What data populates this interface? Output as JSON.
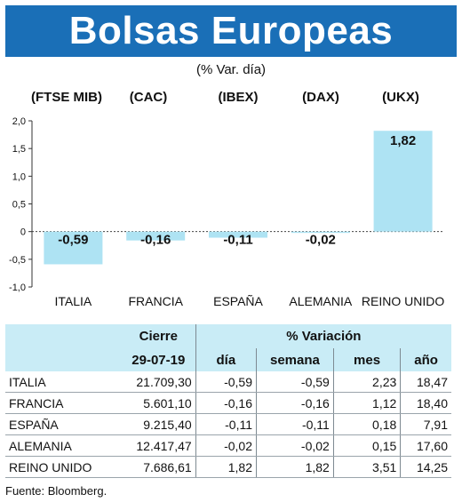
{
  "title": "Bolsas Europeas",
  "subtitle": "(% Var. día)",
  "chart_data": {
    "type": "bar",
    "categories": [
      "ITALIA",
      "FRANCIA",
      "ESPAÑA",
      "ALEMANIA",
      "REINO UNIDO"
    ],
    "index_labels": [
      "(FTSE MIB)",
      "(CAC)",
      "(IBEX)",
      "(DAX)",
      "(UKX)"
    ],
    "values": [
      -0.59,
      -0.16,
      -0.11,
      -0.02,
      1.82
    ],
    "value_labels": [
      "-0,59",
      "-0,16",
      "-0,11",
      "-0,02",
      "1,82"
    ],
    "yticks": [
      2.0,
      1.5,
      1.0,
      0.5,
      0,
      -0.5,
      -1.0
    ],
    "ytick_labels": [
      "2,0",
      "1,5",
      "1,0",
      "0,5",
      "0",
      "-0,5",
      "-1,0"
    ],
    "ylim": [
      -1.0,
      2.0
    ],
    "grid": false,
    "bar_color": "#aee3f3"
  },
  "table": {
    "group_headers": [
      "Cierre",
      "% Variación"
    ],
    "sub_headers": [
      "29-07-19",
      "día",
      "semana",
      "mes",
      "año"
    ],
    "rows": [
      {
        "name": "ITALIA",
        "cierre": "21.709,30",
        "dia": "-0,59",
        "semana": "-0,59",
        "mes": "2,23",
        "ano": "18,47"
      },
      {
        "name": "FRANCIA",
        "cierre": "5.601,10",
        "dia": "-0,16",
        "semana": "-0,16",
        "mes": "1,12",
        "ano": "18,40"
      },
      {
        "name": "ESPAÑA",
        "cierre": "9.215,40",
        "dia": "-0,11",
        "semana": "-0,11",
        "mes": "0,18",
        "ano": "7,91"
      },
      {
        "name": "ALEMANIA",
        "cierre": "12.417,47",
        "dia": "-0,02",
        "semana": "-0,02",
        "mes": "0,15",
        "ano": "17,60"
      },
      {
        "name": "REINO UNIDO",
        "cierre": "7.686,61",
        "dia": "1,82",
        "semana": "1,82",
        "mes": "3,51",
        "ano": "14,25"
      }
    ]
  },
  "source": "Fuente: Bloomberg."
}
